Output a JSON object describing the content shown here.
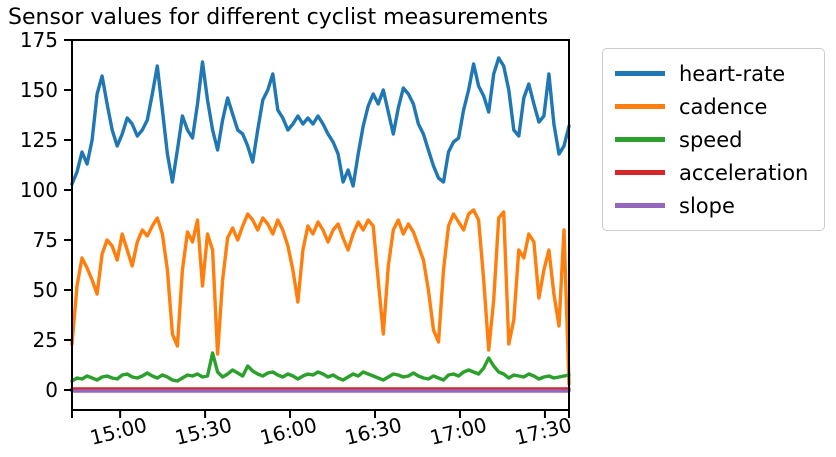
{
  "chart_data": {
    "type": "line",
    "title": "Sensor values for different cyclist measurements",
    "xlabel": "",
    "ylabel": "",
    "grid": false,
    "x_axis": {
      "kind": "time",
      "start_time": "14:43",
      "end_time": "17:39",
      "total_minutes": 175.5,
      "ticks": [
        {
          "label": "15:00",
          "minutes": 17
        },
        {
          "label": "15:30",
          "minutes": 47
        },
        {
          "label": "16:00",
          "minutes": 77
        },
        {
          "label": "16:30",
          "minutes": 107
        },
        {
          "label": "17:00",
          "minutes": 137
        },
        {
          "label": "17:30",
          "minutes": 167
        }
      ],
      "edge_tick_minutes": [
        0,
        175.5
      ],
      "tick_label_rotation_deg": 14
    },
    "y_axis": {
      "ticks": [
        0,
        25,
        50,
        75,
        100,
        125,
        150,
        175
      ],
      "min": -10,
      "max": 175
    },
    "legend": {
      "position": "outside-upper-right",
      "entries": [
        {
          "label": "heart-rate",
          "color": "#1f77b4"
        },
        {
          "label": "cadence",
          "color": "#ff7f0e"
        },
        {
          "label": "speed",
          "color": "#2ca02c"
        },
        {
          "label": "acceleration",
          "color": "#d62728"
        },
        {
          "label": "slope",
          "color": "#9467bd"
        }
      ]
    },
    "series": [
      {
        "name": "heart-rate",
        "color": "#1f77b4",
        "values": [
          103,
          109,
          119,
          113,
          125,
          148,
          157,
          143,
          130,
          122,
          128,
          136,
          133,
          127,
          130,
          135,
          148,
          162,
          140,
          118,
          104,
          120,
          137,
          130,
          126,
          143,
          164,
          145,
          130,
          120,
          135,
          146,
          138,
          130,
          128,
          122,
          114,
          130,
          145,
          150,
          158,
          140,
          136,
          130,
          133,
          137,
          133,
          136,
          133,
          137,
          133,
          128,
          124,
          118,
          104,
          110,
          102,
          118,
          132,
          142,
          148,
          143,
          150,
          139,
          128,
          141,
          151,
          148,
          143,
          133,
          128,
          120,
          112,
          106,
          104,
          119,
          124,
          126,
          140,
          150,
          163,
          152,
          147,
          139,
          158,
          166,
          162,
          150,
          130,
          127,
          146,
          153,
          143,
          134,
          137,
          158,
          133,
          118,
          122,
          132
        ]
      },
      {
        "name": "cadence",
        "color": "#ff7f0e",
        "values": [
          23,
          52,
          66,
          61,
          55,
          48,
          68,
          75,
          72,
          65,
          78,
          70,
          62,
          74,
          80,
          77,
          82,
          86,
          78,
          60,
          28,
          22,
          60,
          79,
          74,
          85,
          52,
          78,
          70,
          18,
          55,
          76,
          81,
          75,
          82,
          88,
          85,
          80,
          86,
          83,
          78,
          85,
          80,
          72,
          60,
          44,
          70,
          82,
          78,
          84,
          80,
          74,
          80,
          83,
          76,
          70,
          78,
          84,
          80,
          85,
          82,
          55,
          28,
          62,
          80,
          85,
          78,
          83,
          79,
          72,
          65,
          50,
          30,
          24,
          60,
          82,
          88,
          84,
          80,
          88,
          90,
          85,
          55,
          20,
          45,
          86,
          89,
          23,
          35,
          70,
          66,
          78,
          74,
          46,
          60,
          70,
          48,
          32,
          80,
          3
        ]
      },
      {
        "name": "speed",
        "color": "#2ca02c",
        "values": [
          4.5,
          6,
          5.5,
          7,
          6,
          5,
          6.5,
          7,
          6,
          5.5,
          7.5,
          8,
          6.5,
          6,
          7,
          8.5,
          7,
          6,
          7.5,
          6.5,
          5,
          4.5,
          6,
          7.5,
          7,
          8,
          6.5,
          7,
          18.5,
          9,
          6.5,
          8,
          10,
          8.5,
          7,
          12,
          9.5,
          8,
          7,
          8.5,
          9,
          7.5,
          6.5,
          8,
          7,
          5.5,
          7,
          8,
          7.5,
          9,
          8,
          6.5,
          7.5,
          6,
          5,
          6.5,
          8,
          7,
          9,
          8,
          7,
          6,
          5,
          6.5,
          8,
          7.5,
          6.5,
          7,
          8.5,
          7,
          6,
          5.5,
          7,
          6,
          5,
          7.5,
          8,
          7,
          9,
          10,
          9,
          8,
          11,
          16,
          12,
          9,
          8,
          6,
          7.5,
          7,
          6.5,
          8,
          7,
          5.5,
          6.5,
          7,
          6,
          6.5,
          7,
          7.5
        ]
      },
      {
        "name": "acceleration",
        "color": "#d62728",
        "values": [
          0.5,
          0.5,
          0.5,
          0.5,
          0.5,
          0.5,
          0.5,
          0.5,
          0.5,
          0.5,
          0.5,
          0.5,
          0.5,
          0.5,
          0.5,
          0.5,
          0.5,
          0.5,
          0.5,
          0.5,
          0.5,
          0.5,
          0.5,
          0.5,
          0.5,
          0.5,
          0.5,
          0.5,
          0.5,
          0.5,
          0.5,
          0.5,
          0.5,
          0.5,
          0.5,
          0.5,
          0.5,
          0.5,
          0.5,
          0.5,
          0.5,
          0.5,
          0.5,
          0.5,
          0.5,
          0.5,
          0.5,
          0.5,
          0.5,
          0.5,
          0.5,
          0.5,
          0.5,
          0.5,
          0.5,
          0.5,
          0.5,
          0.5,
          0.5,
          0.5,
          0.5,
          0.5,
          0.5,
          0.5,
          0.5,
          0.5,
          0.5,
          0.5,
          0.5,
          0.5,
          0.5,
          0.5,
          0.5,
          0.5,
          0.5,
          0.5,
          0.5,
          0.5,
          0.5,
          0.5,
          0.5,
          0.5,
          0.5,
          0.5,
          0.5,
          0.5,
          0.5,
          0.5,
          0.5,
          0.5,
          0.5,
          0.5,
          0.5,
          0.5,
          0.5,
          0.5,
          0.5,
          0.5,
          0.5,
          0.5
        ]
      },
      {
        "name": "slope",
        "color": "#9467bd",
        "values": [
          -0.5,
          -0.5,
          -0.5,
          -0.5,
          -0.5,
          -0.5,
          -0.5,
          -0.5,
          -0.5,
          -0.5,
          -0.5,
          -0.5,
          -0.5,
          -0.5,
          -0.5,
          -0.5,
          -0.5,
          -0.5,
          -0.5,
          -0.5,
          -0.5,
          -0.5,
          -0.5,
          -0.5,
          -0.5,
          -0.5,
          -0.5,
          -0.5,
          -0.5,
          -0.5,
          -0.5,
          -0.5,
          -0.5,
          -0.5,
          -0.5,
          -0.5,
          -0.5,
          -0.5,
          -0.5,
          -0.5,
          -0.5,
          -0.5,
          -0.5,
          -0.5,
          -0.5,
          -0.5,
          -0.5,
          -0.5,
          -0.5,
          -0.5,
          -0.5,
          -0.5,
          -0.5,
          -0.5,
          -0.5,
          -0.5,
          -0.5,
          -0.5,
          -0.5,
          -0.5,
          -0.5,
          -0.5,
          -0.5,
          -0.5,
          -0.5,
          -0.5,
          -0.5,
          -0.5,
          -0.5,
          -0.5,
          -0.5,
          -0.5,
          -0.5,
          -0.5,
          -0.5,
          -0.5,
          -0.5,
          -0.5,
          -0.5,
          -0.5,
          -0.5,
          -0.5,
          -0.5,
          -0.5,
          -0.5,
          -0.5,
          -0.5,
          -0.5,
          -0.5,
          -0.5,
          -0.5,
          -0.5,
          -0.5,
          -0.5,
          -0.5,
          -0.5,
          -0.5,
          -0.5,
          -0.5,
          -0.5
        ]
      }
    ]
  }
}
